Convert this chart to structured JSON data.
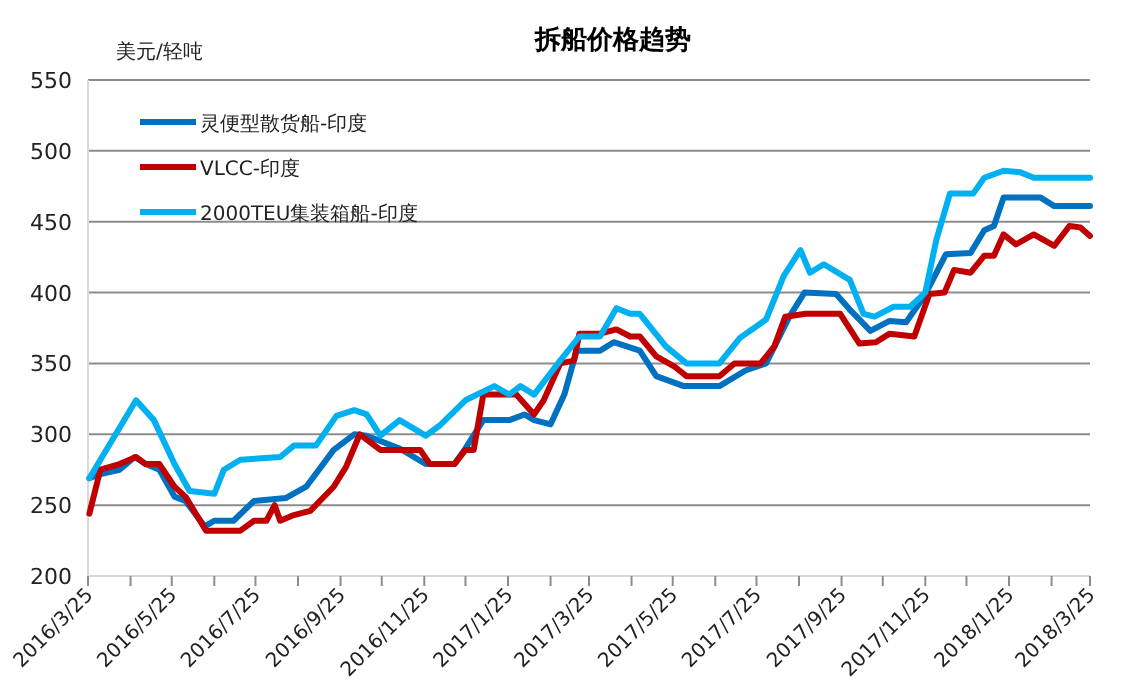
{
  "chart_data": {
    "type": "line",
    "title": "拆船价格趋势",
    "ylabel": "美元/轻吨",
    "xlim": [
      "2016-03-25",
      "2018-03-25"
    ],
    "xticks": [
      {
        "value": "2016-03-25",
        "label": "2016/3/25"
      },
      {
        "value": "2016-04-25",
        "label": null
      },
      {
        "value": "2016-05-25",
        "label": "2016/5/25"
      },
      {
        "value": "2016-06-25",
        "label": null
      },
      {
        "value": "2016-07-25",
        "label": "2016/7/25"
      },
      {
        "value": "2016-08-25",
        "label": null
      },
      {
        "value": "2016-09-25",
        "label": "2016/9/25"
      },
      {
        "value": "2016-10-25",
        "label": null
      },
      {
        "value": "2016-11-25",
        "label": "2016/11/25"
      },
      {
        "value": "2016-12-25",
        "label": null
      },
      {
        "value": "2017-01-25",
        "label": "2017/1/25"
      },
      {
        "value": "2017-02-25",
        "label": null
      },
      {
        "value": "2017-03-25",
        "label": "2017/3/25"
      },
      {
        "value": "2017-04-25",
        "label": null
      },
      {
        "value": "2017-05-25",
        "label": "2017/5/25"
      },
      {
        "value": "2017-06-25",
        "label": null
      },
      {
        "value": "2017-07-25",
        "label": "2017/7/25"
      },
      {
        "value": "2017-08-25",
        "label": null
      },
      {
        "value": "2017-09-25",
        "label": "2017/9/25"
      },
      {
        "value": "2017-10-25",
        "label": null
      },
      {
        "value": "2017-11-25",
        "label": "2017/11/25"
      },
      {
        "value": "2017-12-25",
        "label": null
      },
      {
        "value": "2018-01-25",
        "label": "2018/1/25"
      },
      {
        "value": "2018-02-25",
        "label": null
      },
      {
        "value": "2018-03-25",
        "label": "2018/3/25"
      }
    ],
    "ylim": [
      200,
      550
    ],
    "yticks": [
      200,
      250,
      300,
      350,
      400,
      450,
      500,
      550
    ],
    "grid": "y",
    "legend": "top left",
    "series": [
      {
        "name": "灵便型散货船-印度",
        "color": "#0070c0",
        "x": [
          "2016-03-26",
          "2016-04-03",
          "2016-04-17",
          "2016-04-28",
          "2016-05-06",
          "2016-05-16",
          "2016-05-27",
          "2016-06-04",
          "2016-06-18",
          "2016-06-25",
          "2016-07-09",
          "2016-07-24",
          "2016-08-16",
          "2016-08-31",
          "2016-09-20",
          "2016-10-05",
          "2016-10-14",
          "2016-11-07",
          "2016-11-26",
          "2016-12-17",
          "2016-12-25",
          "2017-01-07",
          "2017-01-26",
          "2017-02-06",
          "2017-02-13",
          "2017-02-25",
          "2017-03-07",
          "2017-03-16",
          "2017-04-02",
          "2017-04-12",
          "2017-05-01",
          "2017-05-13",
          "2017-06-02",
          "2017-06-28",
          "2017-07-17",
          "2017-08-01",
          "2017-08-18",
          "2017-08-29",
          "2017-09-21",
          "2017-10-01",
          "2017-10-16",
          "2017-10-30",
          "2017-11-11",
          "2017-11-24",
          "2017-12-10",
          "2017-12-28",
          "2018-01-07",
          "2018-01-14",
          "2018-01-21",
          "2018-02-17",
          "2018-02-27",
          "2018-03-25"
        ],
        "values": [
          269,
          272,
          275,
          284,
          279,
          275,
          256,
          253,
          235,
          239,
          239,
          253,
          255,
          263,
          289,
          300,
          299,
          290,
          279,
          279,
          290,
          310,
          310,
          314,
          310,
          307,
          328,
          359,
          359,
          365,
          359,
          341,
          334,
          334,
          345,
          350,
          383,
          400,
          399,
          388,
          373,
          380,
          379,
          397,
          427,
          428,
          444,
          447,
          467,
          467,
          461,
          461
        ]
      },
      {
        "name": "VLCC-印度",
        "color": "#c00000",
        "x": [
          "2016-03-26",
          "2016-04-03",
          "2016-04-17",
          "2016-04-29",
          "2016-05-06",
          "2016-05-16",
          "2016-05-27",
          "2016-06-04",
          "2016-06-19",
          "2016-07-14",
          "2016-07-24",
          "2016-08-02",
          "2016-08-08",
          "2016-08-12",
          "2016-08-22",
          "2016-09-03",
          "2016-09-20",
          "2016-09-29",
          "2016-10-09",
          "2016-10-24",
          "2016-11-22",
          "2016-11-29",
          "2016-12-17",
          "2016-12-25",
          "2016-12-31",
          "2017-01-07",
          "2017-01-31",
          "2017-02-13",
          "2017-02-20",
          "2017-03-04",
          "2017-03-14",
          "2017-03-18",
          "2017-04-02",
          "2017-04-14",
          "2017-04-24",
          "2017-05-01",
          "2017-05-13",
          "2017-05-26",
          "2017-06-04",
          "2017-06-28",
          "2017-07-09",
          "2017-07-28",
          "2017-08-07",
          "2017-08-15",
          "2017-08-30",
          "2017-09-24",
          "2017-10-08",
          "2017-10-20",
          "2017-10-30",
          "2017-11-17",
          "2017-11-28",
          "2017-12-09",
          "2017-12-16",
          "2017-12-28",
          "2018-01-07",
          "2018-01-14",
          "2018-01-21",
          "2018-01-30",
          "2018-02-12",
          "2018-02-27",
          "2018-03-10",
          "2018-03-18",
          "2018-03-25"
        ],
        "values": [
          244,
          275,
          279,
          284,
          279,
          279,
          263,
          256,
          232,
          232,
          239,
          239,
          250,
          239,
          243,
          246,
          263,
          277,
          300,
          289,
          289,
          279,
          279,
          289,
          289,
          328,
          328,
          314,
          324,
          350,
          352,
          371,
          371,
          374,
          369,
          369,
          355,
          348,
          341,
          341,
          350,
          350,
          362,
          383,
          385,
          385,
          364,
          365,
          371,
          369,
          399,
          400,
          416,
          414,
          426,
          426,
          441,
          434,
          441,
          433,
          447,
          446,
          440
        ]
      },
      {
        "name": "2000TEU集装箱船-印度",
        "color": "#00b0f0",
        "x": [
          "2016-03-26",
          "2016-04-29",
          "2016-05-12",
          "2016-05-27",
          "2016-06-07",
          "2016-06-25",
          "2016-07-02",
          "2016-07-14",
          "2016-08-12",
          "2016-08-22",
          "2016-09-07",
          "2016-09-22",
          "2016-10-05",
          "2016-10-14",
          "2016-10-24",
          "2016-11-07",
          "2016-11-26",
          "2016-12-06",
          "2016-12-25",
          "2017-01-15",
          "2017-01-26",
          "2017-02-03",
          "2017-02-13",
          "2017-03-04",
          "2017-03-18",
          "2017-04-02",
          "2017-04-14",
          "2017-04-24",
          "2017-05-01",
          "2017-05-20",
          "2017-06-04",
          "2017-06-28",
          "2017-07-13",
          "2017-08-01",
          "2017-08-14",
          "2017-08-26",
          "2017-09-02",
          "2017-09-12",
          "2017-10-01",
          "2017-10-11",
          "2017-10-19",
          "2017-11-02",
          "2017-11-14",
          "2017-11-25",
          "2017-12-03",
          "2017-12-13",
          "2017-12-30",
          "2018-01-07",
          "2018-01-21",
          "2018-02-02",
          "2018-02-12",
          "2018-03-25"
        ],
        "values": [
          269,
          324,
          310,
          279,
          260,
          258,
          275,
          282,
          284,
          292,
          292,
          313,
          317,
          314,
          299,
          310,
          299,
          306,
          324,
          334,
          328,
          334,
          328,
          352,
          369,
          369,
          389,
          385,
          385,
          362,
          350,
          350,
          368,
          381,
          412,
          430,
          414,
          420,
          409,
          385,
          383,
          390,
          390,
          400,
          437,
          470,
          470,
          481,
          486,
          485,
          481,
          481
        ]
      }
    ]
  }
}
